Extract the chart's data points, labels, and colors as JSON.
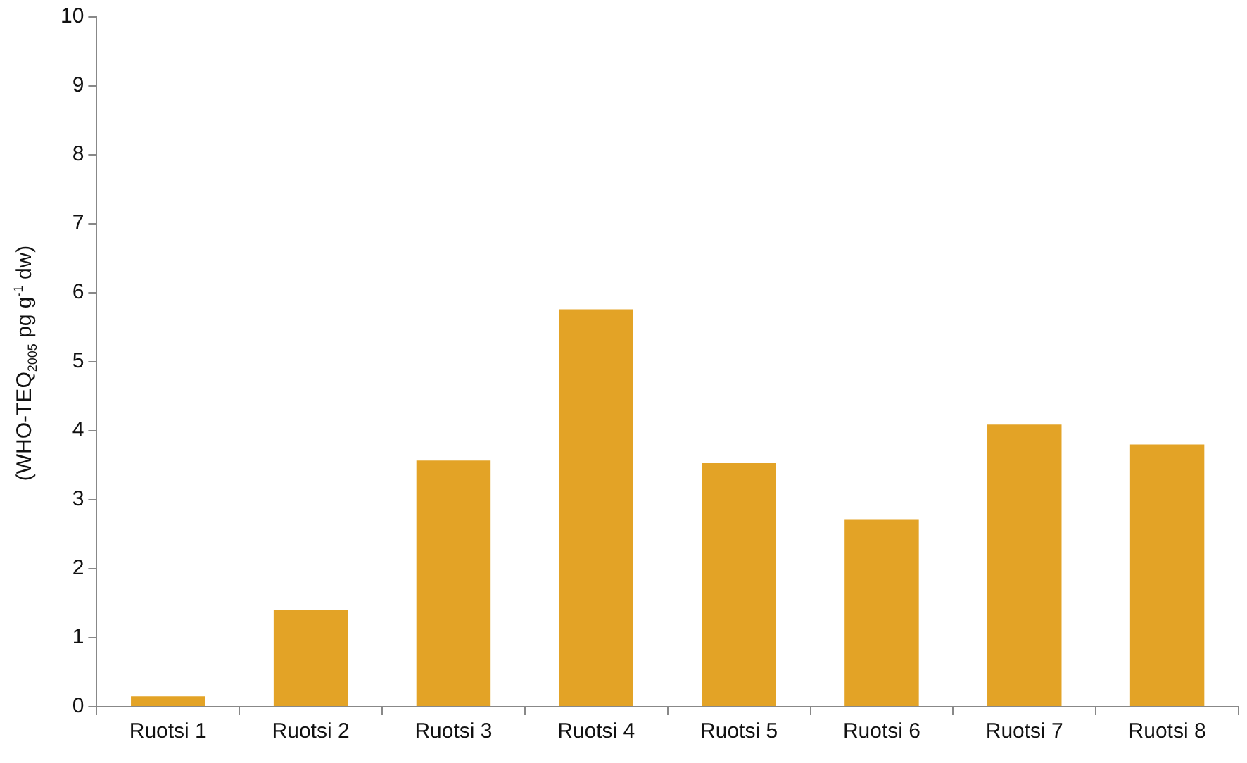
{
  "chart_data": {
    "type": "bar",
    "ylabel": "(WHO-TEQ$_{2005}$ pg g$^{-1}$ dw)",
    "categories": [
      "Ruotsi 1",
      "Ruotsi 2",
      "Ruotsi 3",
      "Ruotsi 4",
      "Ruotsi 5",
      "Ruotsi 6",
      "Ruotsi 7",
      "Ruotsi 8"
    ],
    "values": [
      0.15,
      1.4,
      3.57,
      5.76,
      3.53,
      2.71,
      4.09,
      3.8
    ],
    "color": "#e3a326",
    "ylim": [
      0,
      10
    ],
    "yticks": [
      0,
      1,
      2,
      3,
      4,
      5,
      6,
      7,
      8,
      9,
      10
    ],
    "grid": false,
    "legend": false
  }
}
